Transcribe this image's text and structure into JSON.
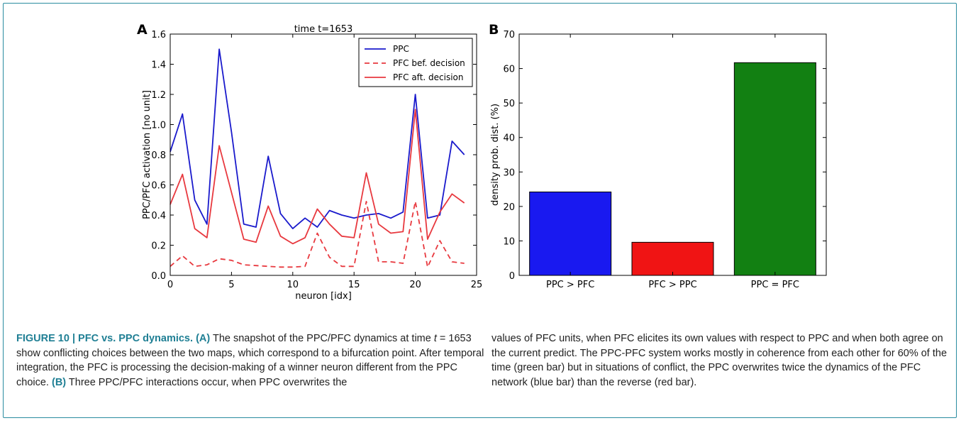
{
  "chart_data": [
    {
      "panel": "A",
      "type": "line",
      "title": "time t=1653",
      "xlabel": "neuron [idx]",
      "ylabel": "PPC/PFC activation [no unit]",
      "xlim": [
        0,
        25
      ],
      "ylim": [
        0,
        1.6
      ],
      "xticks": [
        "0",
        "5",
        "10",
        "15",
        "20",
        "25"
      ],
      "yticks": [
        "0.0",
        "0.2",
        "0.4",
        "0.6",
        "0.8",
        "1.0",
        "1.2",
        "1.4",
        "1.6"
      ],
      "legend_position": "top-right",
      "x": [
        0,
        1,
        2,
        3,
        4,
        5,
        6,
        7,
        8,
        9,
        10,
        11,
        12,
        13,
        14,
        15,
        16,
        17,
        18,
        19,
        20,
        21,
        22,
        23,
        24
      ],
      "series": [
        {
          "name": "PPC",
          "style": "solid",
          "color": "#1a1acc",
          "values": [
            0.82,
            1.07,
            0.5,
            0.34,
            1.5,
            0.95,
            0.34,
            0.32,
            0.79,
            0.41,
            0.31,
            0.38,
            0.32,
            0.43,
            0.4,
            0.38,
            0.4,
            0.41,
            0.38,
            0.42,
            1.2,
            0.38,
            0.4,
            0.89,
            0.8
          ]
        },
        {
          "name": "PFC bef. decision",
          "style": "dashed",
          "color": "#e8393f",
          "values": [
            0.06,
            0.13,
            0.06,
            0.07,
            0.11,
            0.1,
            0.07,
            0.065,
            0.06,
            0.055,
            0.055,
            0.06,
            0.28,
            0.12,
            0.06,
            0.06,
            0.49,
            0.09,
            0.09,
            0.08,
            0.49,
            0.055,
            0.23,
            0.09,
            0.08
          ]
        },
        {
          "name": "PFC aft. decision",
          "style": "solid",
          "color": "#e8393f",
          "values": [
            0.47,
            0.67,
            0.31,
            0.25,
            0.86,
            0.55,
            0.24,
            0.22,
            0.46,
            0.26,
            0.21,
            0.25,
            0.44,
            0.34,
            0.26,
            0.25,
            0.68,
            0.34,
            0.28,
            0.29,
            1.1,
            0.24,
            0.42,
            0.54,
            0.48
          ]
        }
      ]
    },
    {
      "panel": "B",
      "type": "bar",
      "title": "",
      "xlabel": "",
      "ylabel": "density prob. dist. (%)",
      "ylim": [
        0,
        70
      ],
      "yticks": [
        "0",
        "10",
        "20",
        "30",
        "40",
        "50",
        "60",
        "70"
      ],
      "categories": [
        "PPC > PFC",
        "PFC > PPC",
        "PPC = PFC"
      ],
      "values": [
        24.2,
        9.6,
        61.7
      ],
      "colors": [
        "#1919f0",
        "#f01414",
        "#128012"
      ]
    }
  ],
  "caption": {
    "head": "FIGURE 10 | PFC vs. PPC dynamics.",
    "a_tag": "(A)",
    "part1": " The snapshot of the PPC/PFC dynamics at time ",
    "t_var": "t",
    "part2": " = 1653 show conflicting choices between the two maps, which correspond to a bifurcation point. After temporal integration, the PFC is processing the decision-making of a winner neuron different from the PPC choice. ",
    "b_tag": "(B)",
    "part3": " Three PPC/PFC interactions occur, when PPC overwrites the",
    "right": "values of PFC units, when PFC elicites its own values with respect to PPC and when both agree on the current predict. The PPC-PFC system works mostly in coherence from each other for 60% of the time (green bar) but in situations of conflict, the PPC overwrites twice the dynamics of the PFC network (blue bar) than the reverse (red bar)."
  },
  "panel_labels": {
    "a": "A",
    "b": "B"
  }
}
